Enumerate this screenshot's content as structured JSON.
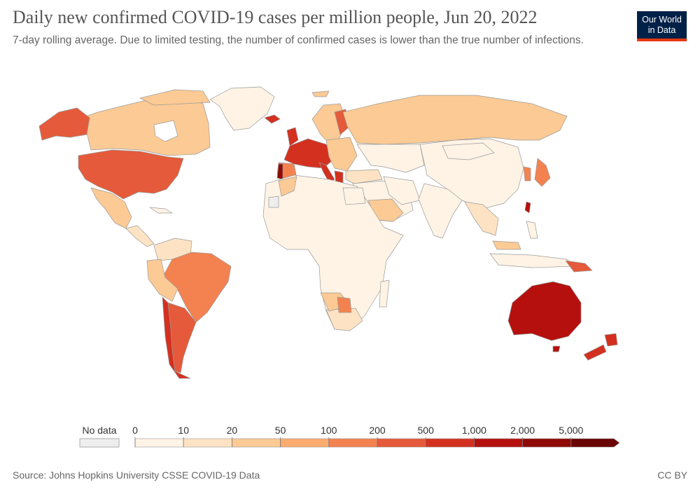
{
  "header": {
    "title": "Daily new confirmed COVID-19 cases per million people, Jun 20, 2022",
    "subtitle": "7-day rolling average. Due to limited testing, the number of confirmed cases is lower than the true number of infections."
  },
  "logo": {
    "line1": "Our World",
    "line2": "in Data",
    "bg": "#002147",
    "accent": "#e63912"
  },
  "legend": {
    "no_data_label": "No data",
    "no_data_color": "#eeeeee",
    "breaks": [
      "0",
      "10",
      "20",
      "50",
      "100",
      "200",
      "500",
      "1,000",
      "2,000",
      "5,000"
    ],
    "colors": [
      "#fef3e5",
      "#fde3c3",
      "#fcca94",
      "#fbac6f",
      "#f38250",
      "#e55a3a",
      "#d4301f",
      "#b5100d",
      "#8f0905",
      "#6a0606"
    ]
  },
  "footer": {
    "source": "Source: Johns Hopkins University CSSE COVID-19 Data",
    "license": "CC BY"
  }
}
